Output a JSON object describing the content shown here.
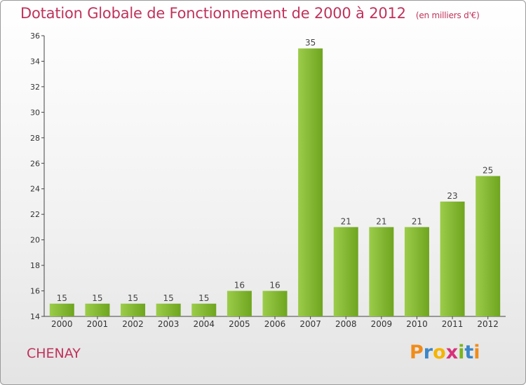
{
  "title": "Dotation Globale de Fonctionnement de 2000 à 2012",
  "subtitle": "(en milliers d'€)",
  "commune": "CHENAY",
  "logo": {
    "text": "Proxiti"
  },
  "colors": {
    "bar_light": "#9ccc4a",
    "bar_dark": "#6ea51f",
    "title": "#c0325b"
  },
  "chart_data": {
    "type": "bar",
    "title": "Dotation Globale de Fonctionnement de 2000 à 2012",
    "subtitle": "(en milliers d'€)",
    "xlabel": "",
    "ylabel": "",
    "categories": [
      "2000",
      "2001",
      "2002",
      "2003",
      "2004",
      "2005",
      "2006",
      "2007",
      "2008",
      "2009",
      "2010",
      "2011",
      "2012"
    ],
    "values": [
      15,
      15,
      15,
      15,
      15,
      16,
      16,
      35,
      21,
      21,
      21,
      23,
      25
    ],
    "data_labels": [
      "15",
      "15",
      "15",
      "15",
      "15",
      "16",
      "16",
      "35",
      "21",
      "21",
      "21",
      "23",
      "25"
    ],
    "ylim": [
      14,
      36
    ],
    "yticks": [
      14,
      16,
      18,
      20,
      22,
      24,
      26,
      28,
      30,
      32,
      34,
      36
    ],
    "grid": false,
    "legend": "none"
  }
}
